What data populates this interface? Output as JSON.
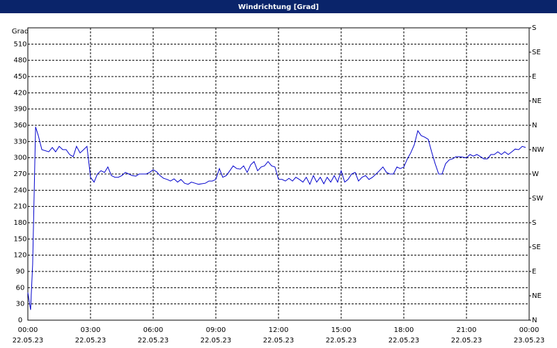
{
  "chart_data": {
    "type": "line",
    "title": "Windrichtung [Grad]",
    "y_label": "Grad",
    "x": [
      0,
      0.13,
      0.23,
      0.37,
      0.5,
      0.67,
      1,
      1.17,
      1.33,
      1.5,
      1.67,
      1.83,
      2,
      2.17,
      2.33,
      2.5,
      2.67,
      2.83,
      3,
      3.17,
      3.33,
      3.5,
      3.67,
      3.83,
      4,
      4.17,
      4.33,
      4.5,
      4.67,
      4.83,
      5,
      5.17,
      5.33,
      5.5,
      5.67,
      5.83,
      6,
      6.17,
      6.33,
      6.5,
      6.67,
      6.83,
      7,
      7.17,
      7.33,
      7.5,
      7.67,
      7.83,
      8,
      8.17,
      8.33,
      8.5,
      8.67,
      8.83,
      9,
      9.17,
      9.33,
      9.5,
      9.67,
      9.83,
      10,
      10.17,
      10.33,
      10.5,
      10.67,
      10.83,
      11,
      11.17,
      11.33,
      11.5,
      11.67,
      11.83,
      12,
      12.17,
      12.33,
      12.5,
      12.67,
      12.83,
      13,
      13.17,
      13.33,
      13.5,
      13.67,
      13.83,
      14,
      14.17,
      14.33,
      14.5,
      14.67,
      14.83,
      15,
      15.17,
      15.33,
      15.5,
      15.67,
      15.83,
      16,
      16.17,
      16.33,
      16.5,
      16.67,
      16.83,
      17,
      17.17,
      17.33,
      17.5,
      17.67,
      17.83,
      18,
      18.17,
      18.33,
      18.5,
      18.67,
      18.83,
      19,
      19.17,
      19.33,
      19.5,
      19.67,
      19.83,
      20,
      20.17,
      20.33,
      20.5,
      20.67,
      20.83,
      21,
      21.17,
      21.33,
      21.5,
      21.67,
      21.83,
      22,
      22.17,
      22.33,
      22.5,
      22.67,
      22.83,
      23,
      23.17,
      23.33,
      23.5,
      23.67,
      23.83
    ],
    "series": [
      {
        "color": "#0000cc",
        "values": [
          51,
          19,
          103,
          357,
          341,
          315,
          311,
          319,
          311,
          321,
          315,
          315,
          306,
          302,
          321,
          309,
          315,
          321,
          264,
          255,
          270,
          276,
          273,
          283,
          267,
          264,
          264,
          267,
          273,
          270,
          267,
          266,
          270,
          270,
          270,
          273,
          278,
          274,
          267,
          262,
          260,
          257,
          261,
          255,
          260,
          253,
          251,
          255,
          253,
          251,
          252,
          253,
          257,
          257,
          260,
          280,
          264,
          267,
          276,
          285,
          280,
          279,
          285,
          273,
          287,
          293,
          276,
          283,
          285,
          293,
          285,
          283,
          260,
          260,
          257,
          262,
          257,
          264,
          260,
          255,
          264,
          251,
          267,
          255,
          264,
          252,
          264,
          255,
          267,
          255,
          276,
          255,
          260,
          270,
          273,
          257,
          264,
          267,
          260,
          264,
          270,
          276,
          283,
          273,
          270,
          270,
          283,
          280,
          283,
          298,
          309,
          324,
          350,
          341,
          338,
          334,
          311,
          289,
          270,
          270,
          289,
          296,
          298,
          302,
          302,
          301,
          300,
          306,
          303,
          306,
          302,
          298,
          298,
          306,
          306,
          311,
          306,
          311,
          306,
          311,
          316,
          315,
          321,
          319
        ]
      }
    ],
    "xlim": [
      0,
      24
    ],
    "ylim": [
      0,
      540
    ],
    "y2lim": [
      0,
      540
    ],
    "xticks": [
      {
        "value": 0,
        "label": [
          "00:00",
          "22.05.23"
        ]
      },
      {
        "value": 3,
        "label": [
          "03:00",
          "22.05.23"
        ]
      },
      {
        "value": 6,
        "label": [
          "06:00",
          "22.05.23"
        ]
      },
      {
        "value": 9,
        "label": [
          "09:00",
          "22.05.23"
        ]
      },
      {
        "value": 12,
        "label": [
          "12:00",
          "22.05.23"
        ]
      },
      {
        "value": 15,
        "label": [
          "15:00",
          "22.05.23"
        ]
      },
      {
        "value": 18,
        "label": [
          "18:00",
          "22.05.23"
        ]
      },
      {
        "value": 21,
        "label": [
          "21:00",
          "22.05.23"
        ]
      },
      {
        "value": 24,
        "label": [
          "00:00",
          "23.05.23"
        ]
      }
    ],
    "yticks": [
      0,
      30,
      60,
      90,
      120,
      150,
      180,
      210,
      240,
      270,
      300,
      330,
      360,
      390,
      420,
      450,
      480,
      510
    ],
    "y2ticks": [
      {
        "value": 0,
        "label": "N"
      },
      {
        "value": 45,
        "label": "NE"
      },
      {
        "value": 90,
        "label": "E"
      },
      {
        "value": 135,
        "label": "SE"
      },
      {
        "value": 180,
        "label": "S"
      },
      {
        "value": 225,
        "label": "SW"
      },
      {
        "value": 270,
        "label": "W"
      },
      {
        "value": 315,
        "label": "NW"
      },
      {
        "value": 360,
        "label": "N"
      },
      {
        "value": 405,
        "label": "NE"
      },
      {
        "value": 450,
        "label": "E"
      },
      {
        "value": 495,
        "label": "SE"
      },
      {
        "value": 540,
        "label": "S"
      }
    ],
    "grid": true
  }
}
